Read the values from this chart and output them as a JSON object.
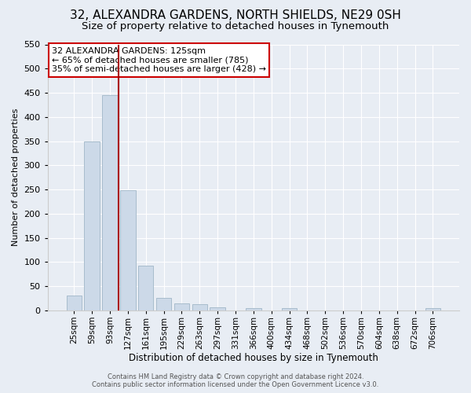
{
  "title": "32, ALEXANDRA GARDENS, NORTH SHIELDS, NE29 0SH",
  "subtitle": "Size of property relative to detached houses in Tynemouth",
  "xlabel": "Distribution of detached houses by size in Tynemouth",
  "ylabel": "Number of detached properties",
  "bar_labels": [
    "25sqm",
    "59sqm",
    "93sqm",
    "127sqm",
    "161sqm",
    "195sqm",
    "229sqm",
    "263sqm",
    "297sqm",
    "331sqm",
    "366sqm",
    "400sqm",
    "434sqm",
    "468sqm",
    "502sqm",
    "536sqm",
    "570sqm",
    "604sqm",
    "638sqm",
    "672sqm",
    "706sqm"
  ],
  "bar_values": [
    30,
    350,
    445,
    248,
    93,
    26,
    15,
    12,
    7,
    0,
    5,
    0,
    5,
    0,
    0,
    0,
    0,
    0,
    0,
    0,
    5
  ],
  "bar_color": "#ccd9e8",
  "bar_edge_color": "#a8bccc",
  "vline_color": "#aa0000",
  "vline_pos": 2.5,
  "ylim": [
    0,
    550
  ],
  "yticks": [
    0,
    50,
    100,
    150,
    200,
    250,
    300,
    350,
    400,
    450,
    500,
    550
  ],
  "annotation_title": "32 ALEXANDRA GARDENS: 125sqm",
  "annotation_line1": "← 65% of detached houses are smaller (785)",
  "annotation_line2": "35% of semi-detached houses are larger (428) →",
  "annotation_box_facecolor": "#ffffff",
  "annotation_box_edgecolor": "#cc0000",
  "footer1": "Contains HM Land Registry data © Crown copyright and database right 2024.",
  "footer2": "Contains public sector information licensed under the Open Government Licence v3.0.",
  "bg_color": "#e8edf4",
  "grid_color": "#ffffff",
  "title_fontsize": 11,
  "subtitle_fontsize": 9.5,
  "annotation_fontsize": 8,
  "xlabel_fontsize": 8.5,
  "ylabel_fontsize": 8,
  "tick_fontsize": 7.5,
  "ytick_fontsize": 8,
  "footer_fontsize": 6
}
